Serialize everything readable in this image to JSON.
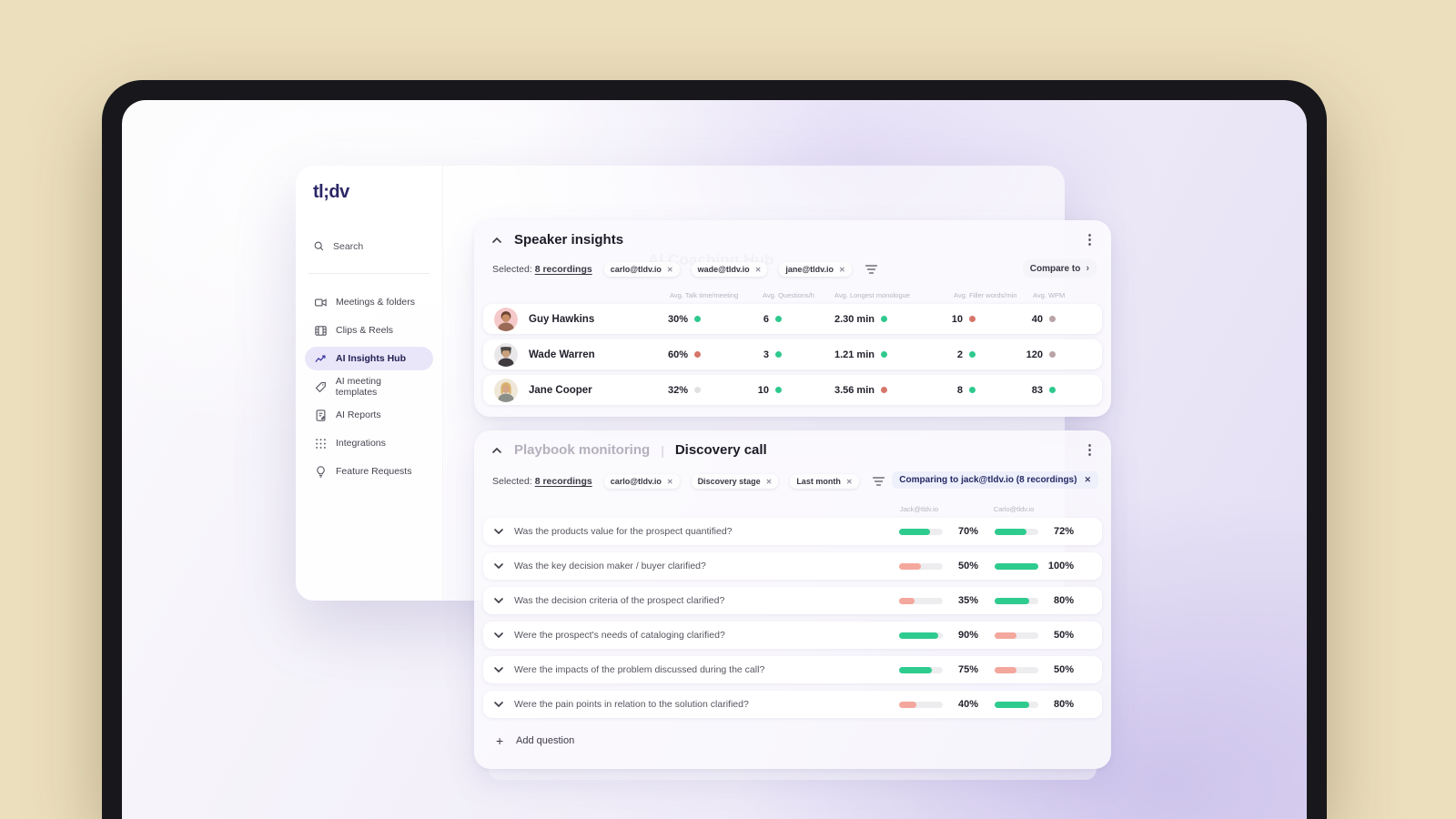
{
  "app": {
    "logo": "tl;dv",
    "page_title": "AI Coaching Hub"
  },
  "sidebar": {
    "search_label": "Search",
    "items": [
      {
        "label": "Meetings & folders",
        "icon": "video-camera-icon",
        "active": false
      },
      {
        "label": "Clips & Reels",
        "icon": "film-icon",
        "active": false
      },
      {
        "label": "AI Insights Hub",
        "icon": "insights-chart-icon",
        "active": true
      },
      {
        "label": "AI meeting templates",
        "icon": "template-tag-icon",
        "active": false
      },
      {
        "label": "AI Reports",
        "icon": "report-doc-icon",
        "active": false
      },
      {
        "label": "Integrations",
        "icon": "grid-dots-icon",
        "active": false
      },
      {
        "label": "Feature Requests",
        "icon": "lightbulb-icon",
        "active": false
      }
    ]
  },
  "speaker_insights": {
    "title": "Speaker insights",
    "selected_label": "Selected:",
    "selected_count": "8 recordings",
    "chips": [
      "carlo@tldv.io",
      "wade@tldv.io",
      "jane@tldv.io"
    ],
    "compare_button": "Compare to",
    "columns": [
      "Avg. Talk time/meeting",
      "Avg. Questions/h",
      "Avg. Longest monologue",
      "Avg. Filler words/min",
      "Avg. WPM"
    ],
    "rows": [
      {
        "name": "Guy Hawkins",
        "avatar": "guy",
        "metrics": [
          {
            "value": "30%",
            "dot": "green"
          },
          {
            "value": "6",
            "dot": "green"
          },
          {
            "value": "2.30 min",
            "dot": "green"
          },
          {
            "value": "10",
            "dot": "red"
          },
          {
            "value": "40",
            "dot": "gray"
          }
        ]
      },
      {
        "name": "Wade Warren",
        "avatar": "wade",
        "metrics": [
          {
            "value": "60%",
            "dot": "red"
          },
          {
            "value": "3",
            "dot": "green"
          },
          {
            "value": "1.21 min",
            "dot": "green"
          },
          {
            "value": "2",
            "dot": "green"
          },
          {
            "value": "120",
            "dot": "gray"
          }
        ]
      },
      {
        "name": "Jane Cooper",
        "avatar": "jane",
        "metrics": [
          {
            "value": "32%",
            "dot": "lightgray"
          },
          {
            "value": "10",
            "dot": "green"
          },
          {
            "value": "3.56 min",
            "dot": "red"
          },
          {
            "value": "8",
            "dot": "green"
          },
          {
            "value": "83",
            "dot": "green"
          }
        ]
      }
    ]
  },
  "playbook": {
    "title_muted": "Playbook monitoring",
    "title_sep": "|",
    "title": "Discovery call",
    "selected_label": "Selected:",
    "selected_count": "8 recordings",
    "chips": [
      "carlo@tldv.io",
      "Discovery stage",
      "Last month"
    ],
    "comparing_chip": "Comparing to jack@tldv.io (8 recordings)",
    "columns": [
      "Jack@tldv.io",
      "Carlo@tldv.io"
    ],
    "questions": [
      {
        "text": "Was the products value for the prospect quantified?",
        "bars": [
          {
            "pct": 70,
            "color": "green",
            "label": "70%"
          },
          {
            "pct": 72,
            "color": "green",
            "label": "72%"
          }
        ]
      },
      {
        "text": "Was the key decision maker / buyer clarified?",
        "bars": [
          {
            "pct": 50,
            "color": "salmon",
            "label": "50%"
          },
          {
            "pct": 100,
            "color": "green",
            "label": "100%"
          }
        ]
      },
      {
        "text": "Was the decision criteria of the prospect clarified?",
        "bars": [
          {
            "pct": 35,
            "color": "salmon",
            "label": "35%"
          },
          {
            "pct": 80,
            "color": "green",
            "label": "80%"
          }
        ]
      },
      {
        "text": "Were the prospect's needs of cataloging clarified?",
        "bars": [
          {
            "pct": 90,
            "color": "green",
            "label": "90%"
          },
          {
            "pct": 50,
            "color": "salmon",
            "label": "50%"
          }
        ]
      },
      {
        "text": "Were the impacts of the problem discussed during the call?",
        "bars": [
          {
            "pct": 75,
            "color": "green",
            "label": "75%"
          },
          {
            "pct": 50,
            "color": "salmon",
            "label": "50%"
          }
        ]
      },
      {
        "text": "Were the pain points in relation to the solution clarified?",
        "bars": [
          {
            "pct": 40,
            "color": "salmon",
            "label": "40%"
          },
          {
            "pct": 80,
            "color": "green",
            "label": "80%"
          }
        ]
      }
    ],
    "add_question": "Add question"
  },
  "colors": {
    "green": "#2fc98e",
    "red": "#d6766a",
    "gray": "#b9a3a7",
    "lightgray": "#e3e0e2",
    "bar_green": "#2ecb8f",
    "bar_salmon": "#f4a79d",
    "accent": "#2b2766"
  }
}
